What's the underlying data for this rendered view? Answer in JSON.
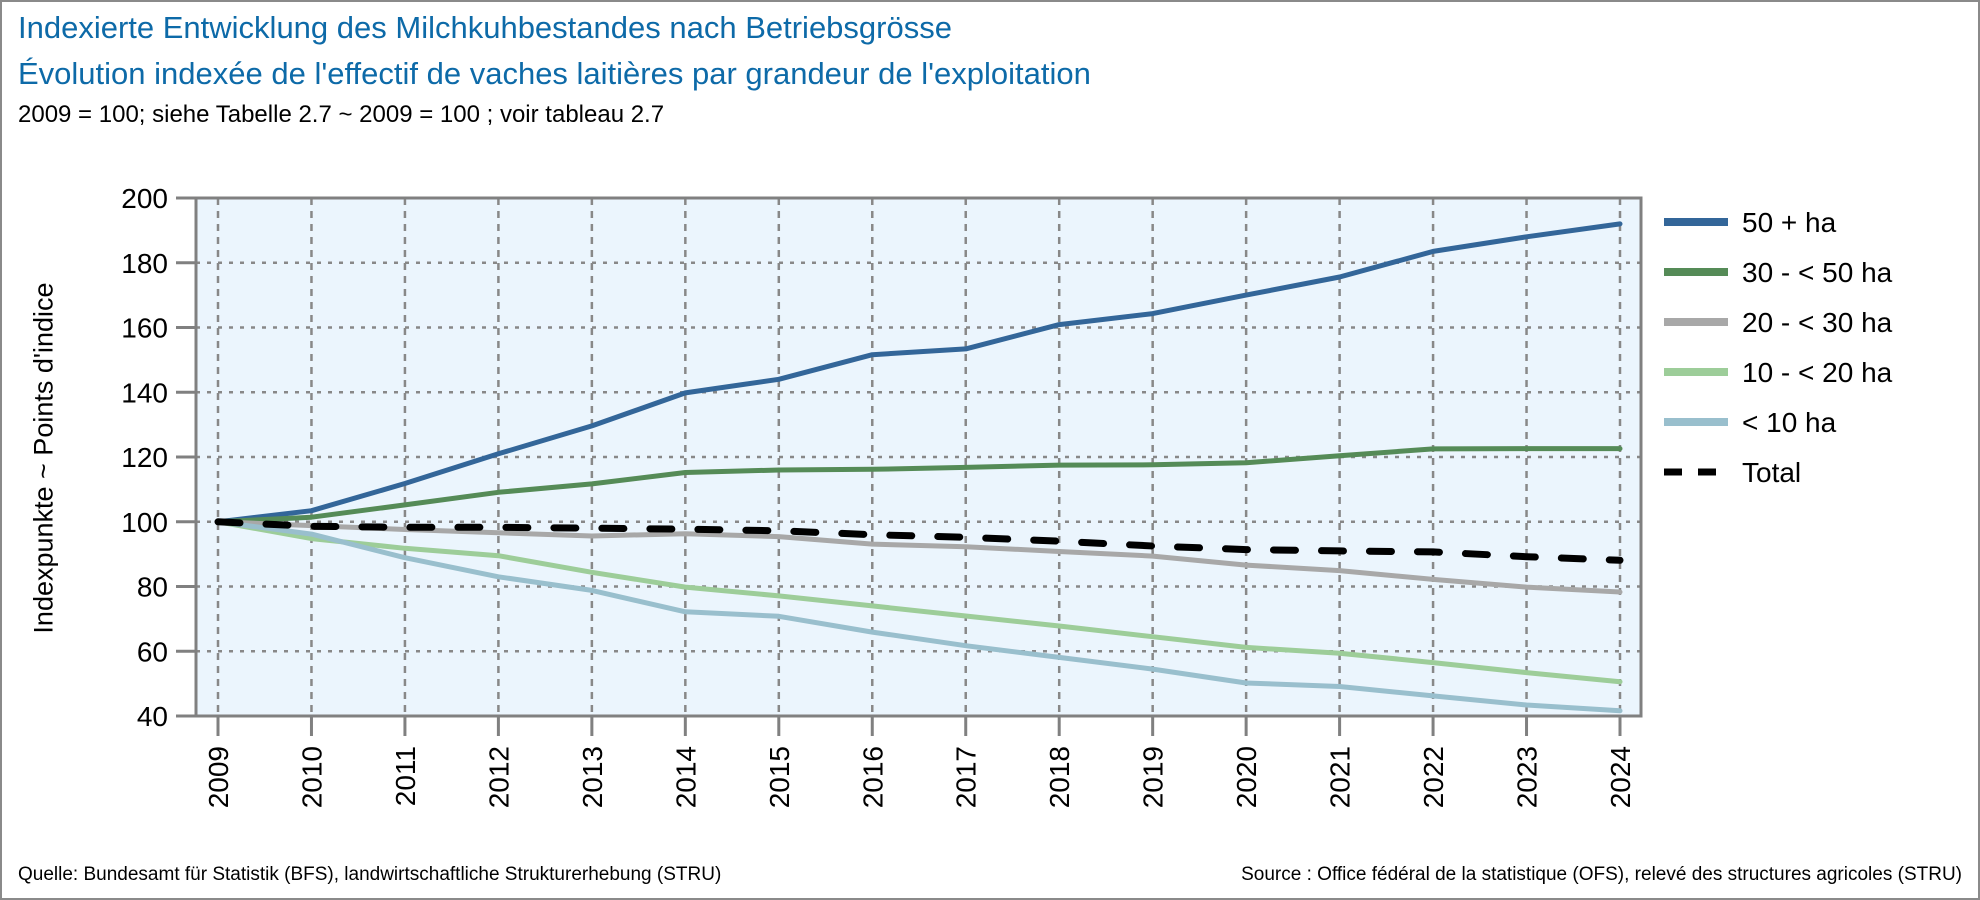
{
  "header": {
    "title_de": "Indexierte Entwicklung des Milchkuhbestandes nach Betriebsgrösse",
    "title_fr": "Évolution indexée de l'effectif de vaches laitières par grandeur de l'exploitation",
    "subtitle": "2009 = 100; siehe Tabelle 2.7   ~   2009 = 100 ; voir tableau 2.7"
  },
  "footer": {
    "source_de": "Quelle: Bundesamt für Statistik (BFS), landwirtschaftliche Strukturerhebung (STRU)",
    "source_fr": "Source : Office fédéral de la statistique (OFS), relevé des structures agricoles (STRU)"
  },
  "chart_data": {
    "type": "line",
    "title": "Indexierte Entwicklung des Milchkuhbestandes nach Betriebsgrösse / Évolution indexée de l'effectif de vaches laitières par grandeur de l'exploitation",
    "xlabel": "",
    "ylabel": "Indexpunkte   ~   Points d'indice",
    "x": [
      2009,
      2010,
      2011,
      2012,
      2013,
      2014,
      2015,
      2016,
      2017,
      2018,
      2019,
      2020,
      2021,
      2022,
      2023,
      2024
    ],
    "ylim": [
      40,
      200
    ],
    "yticks": [
      40,
      60,
      80,
      100,
      120,
      140,
      160,
      180,
      200
    ],
    "grid": true,
    "legend_position": "right",
    "plot_background": "#ebf5fd",
    "series": [
      {
        "name": "50 + ha",
        "color": "#336699",
        "dashed": false,
        "values": [
          100,
          103.4,
          111.8,
          121.0,
          129.6,
          139.8,
          144.0,
          151.6,
          153.4,
          160.9,
          164.3,
          170.0,
          175.6,
          183.5,
          188.0,
          192.0
        ]
      },
      {
        "name": "30 - < 50 ha",
        "color": "#558b57",
        "dashed": false,
        "values": [
          100,
          101.4,
          105.2,
          109.1,
          111.7,
          115.2,
          116.0,
          116.2,
          116.8,
          117.5,
          117.6,
          118.2,
          120.4,
          122.5,
          122.6,
          122.6
        ]
      },
      {
        "name": "20 - < 30 ha",
        "color": "#a8a8a8",
        "dashed": false,
        "values": [
          100,
          98.8,
          97.6,
          96.6,
          95.6,
          96.3,
          95.4,
          93.1,
          92.3,
          90.8,
          89.4,
          86.6,
          84.9,
          82.2,
          79.8,
          78.3
        ]
      },
      {
        "name": "10 - < 20 ha",
        "color": "#9dcd99",
        "dashed": false,
        "values": [
          100,
          94.8,
          91.8,
          89.5,
          84.4,
          79.8,
          77.1,
          74.0,
          70.9,
          67.8,
          64.5,
          61.2,
          59.4,
          56.5,
          53.4,
          50.6
        ]
      },
      {
        "name": "< 10 ha",
        "color": "#99bfcd",
        "dashed": false,
        "values": [
          100,
          96.2,
          88.9,
          83.0,
          78.8,
          72.2,
          70.8,
          65.9,
          61.7,
          58.1,
          54.5,
          50.2,
          49.1,
          46.2,
          43.4,
          41.6
        ]
      },
      {
        "name": "Total",
        "color": "#000000",
        "dashed": true,
        "values": [
          100,
          98.6,
          98.3,
          98.3,
          98.0,
          97.7,
          97.2,
          96.0,
          95.2,
          94.0,
          92.5,
          91.4,
          91.0,
          90.7,
          89.2,
          88.1
        ]
      }
    ]
  }
}
